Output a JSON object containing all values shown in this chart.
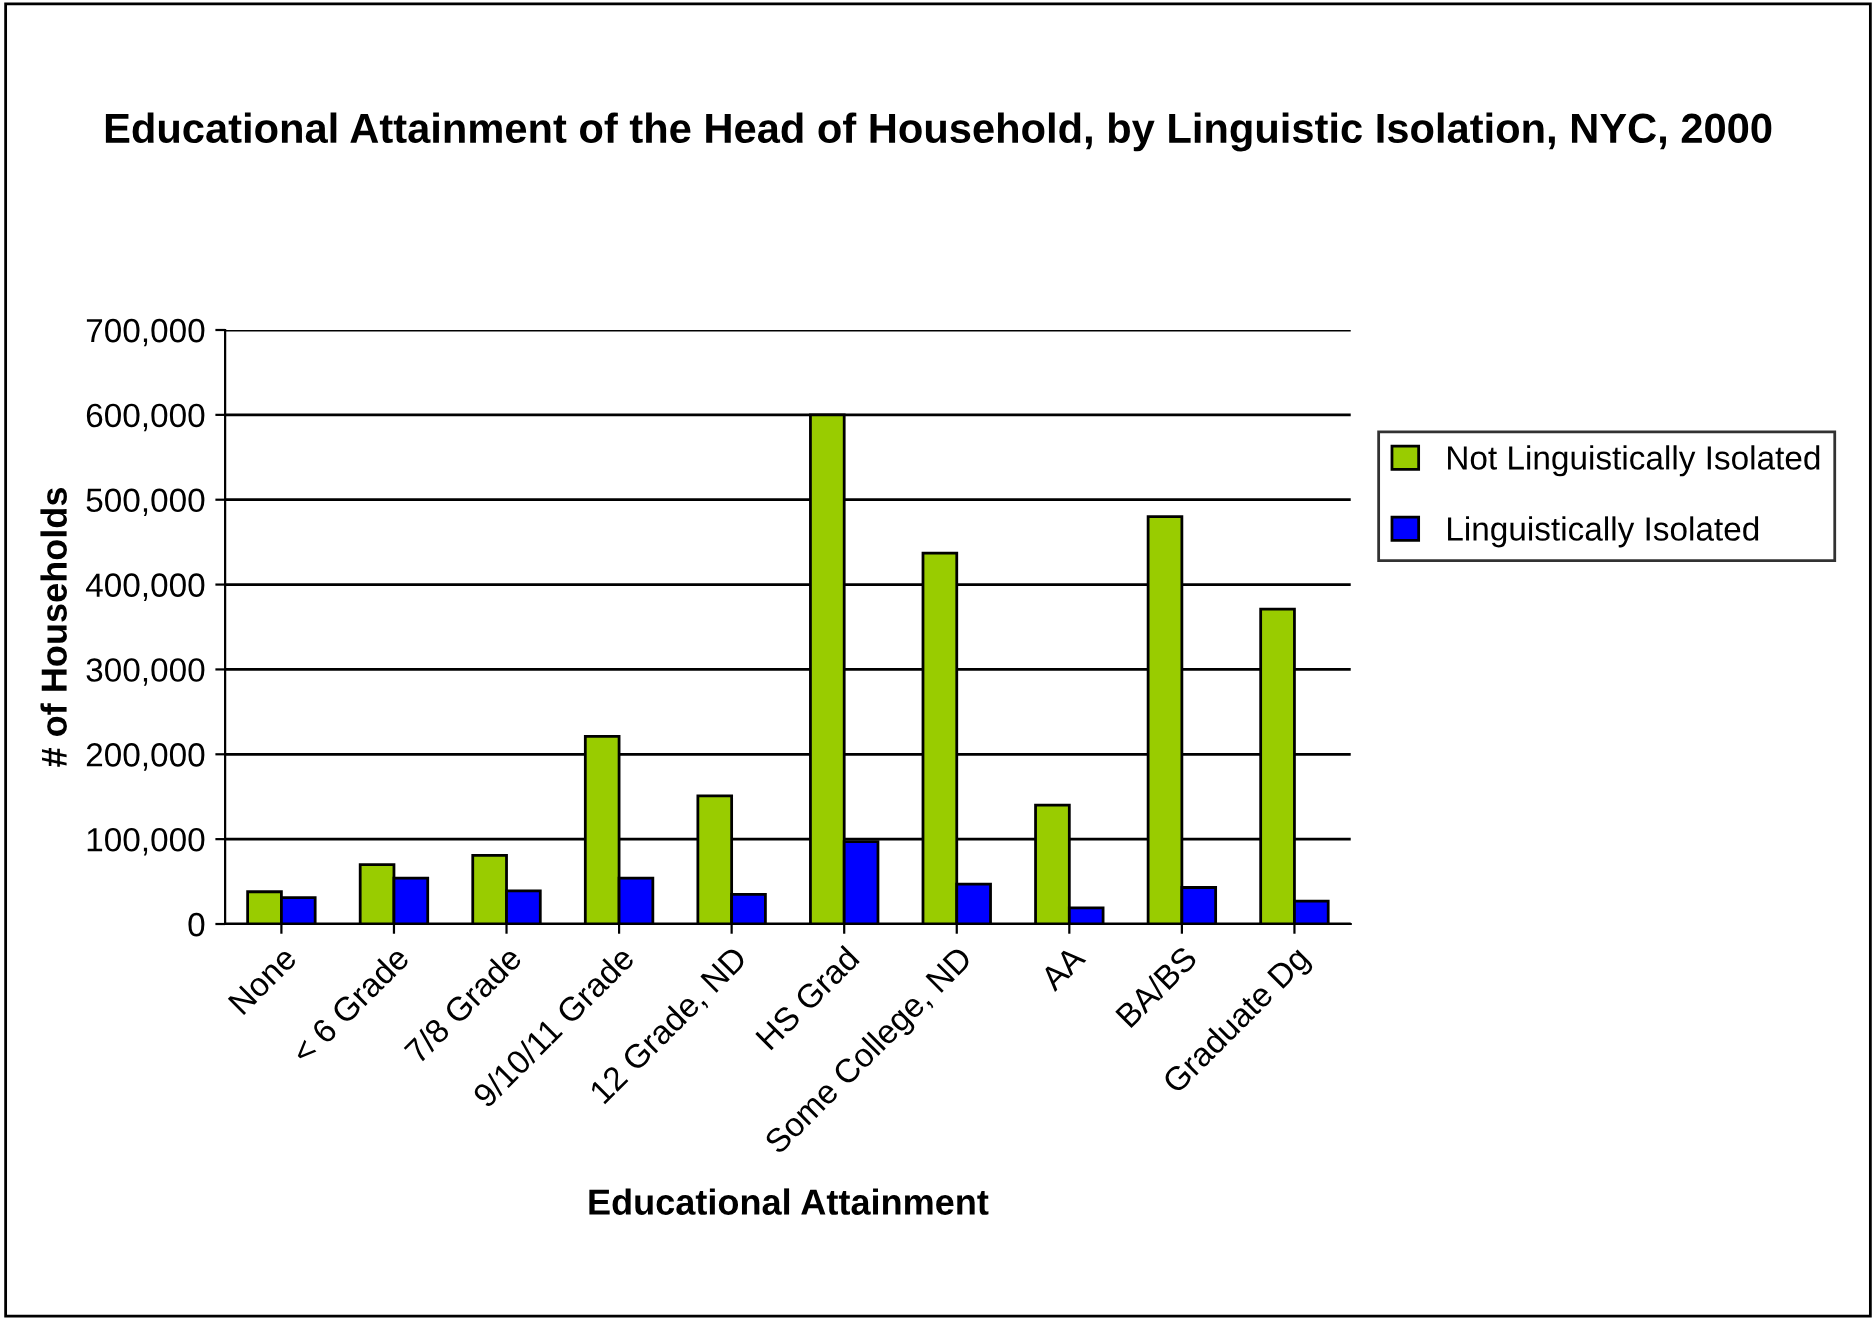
{
  "chart_data": {
    "type": "bar",
    "title": "Educational Attainment of the Head of Household, by Linguistic Isolation, NYC, 2000",
    "xlabel": "Educational Attainment",
    "ylabel": "# of Households",
    "categories": [
      "None",
      "< 6 Grade",
      "7/8 Grade",
      "9/10/11 Grade",
      "12 Grade, ND",
      "HS Grad",
      "Some College, ND",
      "AA",
      "BA/BS",
      "Graduate Dg"
    ],
    "series": [
      {
        "name": "Not Linguistically Isolated",
        "color": "#99cc00",
        "values": [
          38000,
          70000,
          81000,
          221000,
          151000,
          600000,
          437000,
          140000,
          480000,
          371000
        ]
      },
      {
        "name": "Linguistically Isolated",
        "color": "#0000ff",
        "values": [
          31000,
          54000,
          39000,
          54000,
          35000,
          97000,
          47000,
          19000,
          43000,
          27000
        ]
      }
    ],
    "ylim": [
      0,
      700000
    ],
    "yticks": [
      {
        "value": 0,
        "label": "0"
      },
      {
        "value": 100000,
        "label": "100,000"
      },
      {
        "value": 200000,
        "label": "200,000"
      },
      {
        "value": 300000,
        "label": "300,000"
      },
      {
        "value": 400000,
        "label": "400,000"
      },
      {
        "value": 500000,
        "label": "500,000"
      },
      {
        "value": 600000,
        "label": "600,000"
      },
      {
        "value": 700000,
        "label": "700,000"
      }
    ],
    "grid": "y",
    "legend": "right"
  }
}
